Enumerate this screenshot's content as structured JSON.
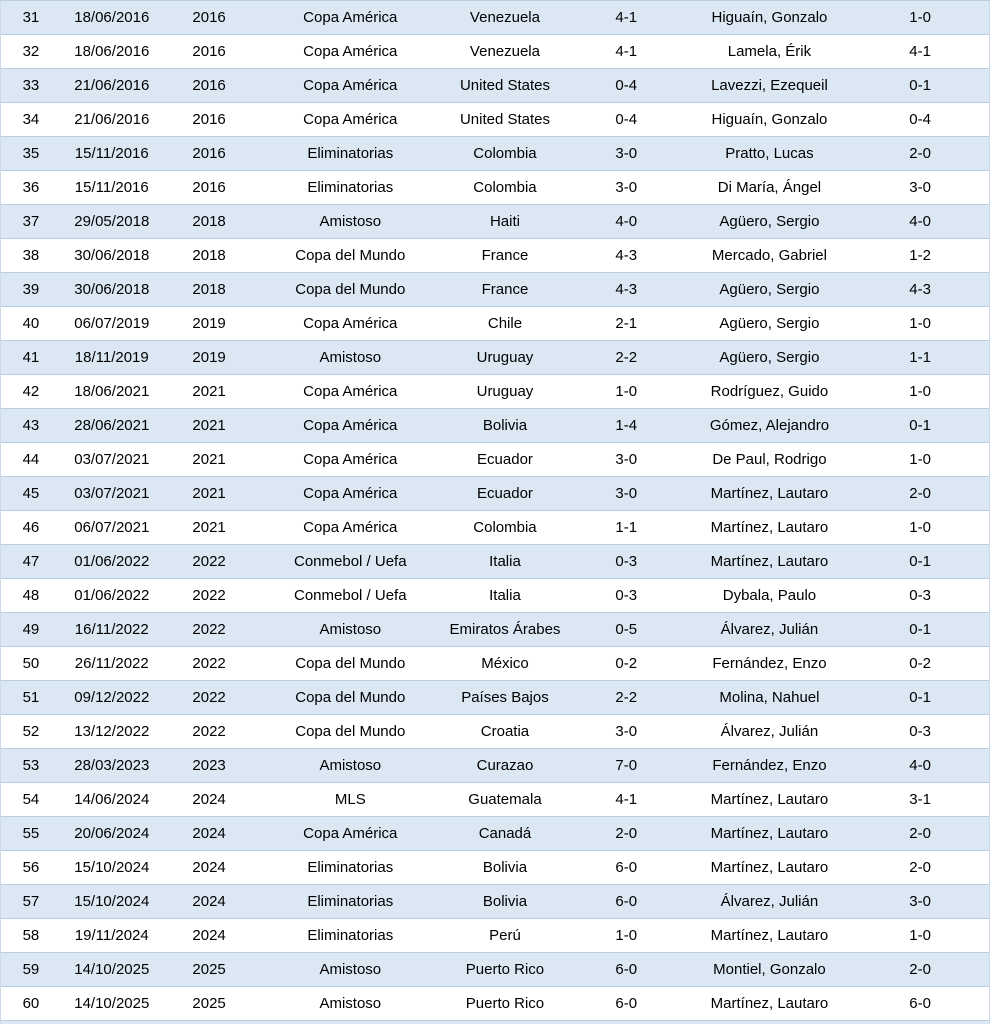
{
  "chart_data": {
    "type": "table",
    "column_keys": [
      "match_number",
      "date",
      "year",
      "competition",
      "opponent",
      "final_score",
      "scorer",
      "partial_score"
    ],
    "headers_visible": false,
    "rows": [
      [
        "31",
        "18/06/2016",
        "2016",
        "Copa América",
        "Venezuela",
        "4-1",
        "Higuaín, Gonzalo",
        "1-0"
      ],
      [
        "32",
        "18/06/2016",
        "2016",
        "Copa América",
        "Venezuela",
        "4-1",
        "Lamela, Érik",
        "4-1"
      ],
      [
        "33",
        "21/06/2016",
        "2016",
        "Copa América",
        "United States",
        "0-4",
        "Lavezzi, Ezequeil",
        "0-1"
      ],
      [
        "34",
        "21/06/2016",
        "2016",
        "Copa América",
        "United States",
        "0-4",
        "Higuaín, Gonzalo",
        "0-4"
      ],
      [
        "35",
        "15/11/2016",
        "2016",
        "Eliminatorias",
        "Colombia",
        "3-0",
        "Pratto, Lucas",
        "2-0"
      ],
      [
        "36",
        "15/11/2016",
        "2016",
        "Eliminatorias",
        "Colombia",
        "3-0",
        "Di María, Ángel",
        "3-0"
      ],
      [
        "37",
        "29/05/2018",
        "2018",
        "Amistoso",
        "Haiti",
        "4-0",
        "Agüero, Sergio",
        "4-0"
      ],
      [
        "38",
        "30/06/2018",
        "2018",
        "Copa del Mundo",
        "France",
        "4-3",
        "Mercado, Gabriel",
        "1-2"
      ],
      [
        "39",
        "30/06/2018",
        "2018",
        "Copa del Mundo",
        "France",
        "4-3",
        "Agüero, Sergio",
        "4-3"
      ],
      [
        "40",
        "06/07/2019",
        "2019",
        "Copa América",
        "Chile",
        "2-1",
        "Agüero, Sergio",
        "1-0"
      ],
      [
        "41",
        "18/11/2019",
        "2019",
        "Amistoso",
        "Uruguay",
        "2-2",
        "Agüero, Sergio",
        "1-1"
      ],
      [
        "42",
        "18/06/2021",
        "2021",
        "Copa América",
        "Uruguay",
        "1-0",
        "Rodríguez, Guido",
        "1-0"
      ],
      [
        "43",
        "28/06/2021",
        "2021",
        "Copa América",
        "Bolivia",
        "1-4",
        "Gómez, Alejandro",
        "0-1"
      ],
      [
        "44",
        "03/07/2021",
        "2021",
        "Copa América",
        "Ecuador",
        "3-0",
        "De Paul, Rodrigo",
        "1-0"
      ],
      [
        "45",
        "03/07/2021",
        "2021",
        "Copa América",
        "Ecuador",
        "3-0",
        "Martínez, Lautaro",
        "2-0"
      ],
      [
        "46",
        "06/07/2021",
        "2021",
        "Copa América",
        "Colombia",
        "1-1",
        "Martínez, Lautaro",
        "1-0"
      ],
      [
        "47",
        "01/06/2022",
        "2022",
        "Conmebol / Uefa",
        "Italia",
        "0-3",
        "Martínez, Lautaro",
        "0-1"
      ],
      [
        "48",
        "01/06/2022",
        "2022",
        "Conmebol / Uefa",
        "Italia",
        "0-3",
        "Dybala, Paulo",
        "0-3"
      ],
      [
        "49",
        "16/11/2022",
        "2022",
        "Amistoso",
        "Emiratos Árabes",
        "0-5",
        "Álvarez, Julián",
        "0-1"
      ],
      [
        "50",
        "26/11/2022",
        "2022",
        "Copa del Mundo",
        "México",
        "0-2",
        "Fernández, Enzo",
        "0-2"
      ],
      [
        "51",
        "09/12/2022",
        "2022",
        "Copa del Mundo",
        "Países Bajos",
        "2-2",
        "Molina, Nahuel",
        "0-1"
      ],
      [
        "52",
        "13/12/2022",
        "2022",
        "Copa del Mundo",
        "Croatia",
        "3-0",
        "Álvarez, Julián",
        "0-3"
      ],
      [
        "53",
        "28/03/2023",
        "2023",
        "Amistoso",
        "Curazao",
        "7-0",
        "Fernández, Enzo",
        "4-0"
      ],
      [
        "54",
        "14/06/2024",
        "2024",
        "MLS",
        "Guatemala",
        "4-1",
        "Martínez, Lautaro",
        "3-1"
      ],
      [
        "55",
        "20/06/2024",
        "2024",
        "Copa América",
        "Canadá",
        "2-0",
        "Martínez, Lautaro",
        "2-0"
      ],
      [
        "56",
        "15/10/2024",
        "2024",
        "Eliminatorias",
        "Bolivia",
        "6-0",
        "Martínez, Lautaro",
        "2-0"
      ],
      [
        "57",
        "15/10/2024",
        "2024",
        "Eliminatorias",
        "Bolivia",
        "6-0",
        "Álvarez, Julián",
        "3-0"
      ],
      [
        "58",
        "19/11/2024",
        "2024",
        "Eliminatorias",
        "Perú",
        "1-0",
        "Martínez, Lautaro",
        "1-0"
      ],
      [
        "59",
        "14/10/2025",
        "2025",
        "Amistoso",
        "Puerto Rico",
        "6-0",
        "Montiel, Gonzalo",
        "2-0"
      ],
      [
        "60",
        "14/10/2025",
        "2025",
        "Amistoso",
        "Puerto Rico",
        "6-0",
        "Martínez, Lautaro",
        "6-0"
      ]
    ]
  },
  "colors": {
    "row_alt_background": "#dbe8f4",
    "row_background": "#ffffff",
    "grid_border": "#b9cde2",
    "text": "#000000"
  }
}
